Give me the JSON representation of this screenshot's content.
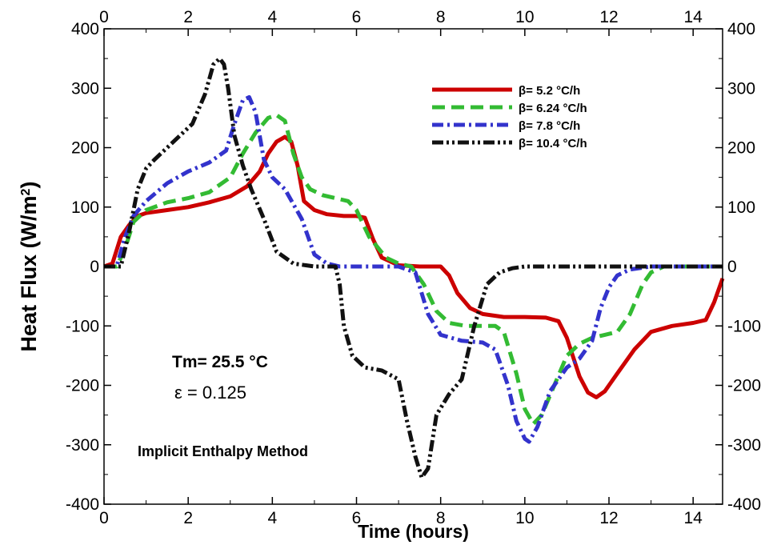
{
  "chart_data": {
    "type": "line",
    "title": "",
    "xlabel": "Time (hours)",
    "ylabel": "Heat Flux (W/m",
    "ylabel_sup": "2",
    "ylabel_close": ")",
    "xlim": [
      0,
      14.7
    ],
    "ylim": [
      -400,
      400
    ],
    "x_ticks": [
      0,
      2,
      4,
      6,
      8,
      10,
      12,
      14
    ],
    "y_ticks": [
      -400,
      -300,
      -200,
      -100,
      0,
      100,
      200,
      300,
      400
    ],
    "grid": false,
    "legend_position": "top-right",
    "series": [
      {
        "name": "β= 5.2 °C/h",
        "color": "#cc0000",
        "dash": "solid",
        "x": [
          0,
          0.2,
          0.4,
          0.6,
          0.8,
          1.0,
          1.5,
          2.0,
          2.5,
          3.0,
          3.4,
          3.7,
          3.9,
          4.1,
          4.3,
          4.45,
          4.6,
          4.75,
          5.0,
          5.3,
          5.7,
          6.0,
          6.2,
          6.4,
          6.6,
          7.0,
          7.5,
          8.0,
          8.2,
          8.4,
          8.7,
          9.0,
          9.5,
          10.0,
          10.5,
          10.8,
          11.0,
          11.3,
          11.5,
          11.7,
          11.9,
          12.2,
          12.6,
          13.0,
          13.5,
          14.0,
          14.3,
          14.5,
          14.7
        ],
        "y": [
          0,
          5,
          50,
          70,
          85,
          90,
          95,
          100,
          108,
          118,
          135,
          160,
          190,
          210,
          218,
          210,
          170,
          110,
          95,
          88,
          85,
          85,
          82,
          45,
          15,
          2,
          0,
          0,
          -15,
          -45,
          -70,
          -80,
          -85,
          -85,
          -86,
          -92,
          -120,
          -185,
          -212,
          -220,
          -210,
          -180,
          -140,
          -110,
          -100,
          -95,
          -90,
          -60,
          -20
        ]
      },
      {
        "name": "β= 6.24 °C/h",
        "color": "#33bb33",
        "dash": "dashed",
        "x": [
          0,
          0.3,
          0.5,
          0.7,
          1.0,
          1.5,
          2.0,
          2.5,
          3.0,
          3.3,
          3.6,
          3.9,
          4.1,
          4.3,
          4.5,
          4.7,
          4.9,
          5.2,
          5.5,
          5.8,
          6.0,
          6.3,
          6.7,
          7.0,
          7.3,
          7.6,
          7.9,
          8.2,
          8.6,
          9.0,
          9.3,
          9.5,
          9.8,
          10.0,
          10.2,
          10.4,
          10.7,
          11.0,
          11.3,
          11.6,
          11.9,
          12.2,
          12.5,
          12.8,
          13.0,
          13.3,
          13.6,
          14.0,
          14.7
        ],
        "y": [
          0,
          0,
          30,
          75,
          95,
          108,
          115,
          125,
          150,
          190,
          225,
          250,
          255,
          245,
          190,
          150,
          130,
          120,
          115,
          110,
          95,
          50,
          15,
          5,
          0,
          -30,
          -75,
          -95,
          -100,
          -100,
          -100,
          -110,
          -180,
          -240,
          -265,
          -250,
          -200,
          -150,
          -130,
          -120,
          -115,
          -110,
          -80,
          -30,
          -10,
          0,
          0,
          0,
          0
        ]
      },
      {
        "name": "β= 7.8 °C/h",
        "color": "#3333cc",
        "dash": "dashdot",
        "x": [
          0,
          0.3,
          0.5,
          0.7,
          1.0,
          1.5,
          2.0,
          2.5,
          2.9,
          3.1,
          3.3,
          3.45,
          3.6,
          3.8,
          4.0,
          4.3,
          4.7,
          5.0,
          5.3,
          5.6,
          6.0,
          6.5,
          7.0,
          7.4,
          7.7,
          8.0,
          8.5,
          9.0,
          9.3,
          9.6,
          9.8,
          10.0,
          10.1,
          10.3,
          10.6,
          11.0,
          11.3,
          11.6,
          11.8,
          12.0,
          12.2,
          12.5,
          13.0,
          13.5,
          14.0,
          14.7
        ],
        "y": [
          0,
          0,
          50,
          85,
          110,
          140,
          160,
          175,
          195,
          240,
          280,
          285,
          260,
          180,
          150,
          130,
          80,
          20,
          5,
          0,
          0,
          0,
          0,
          -10,
          -80,
          -115,
          -125,
          -128,
          -140,
          -200,
          -260,
          -290,
          -295,
          -270,
          -210,
          -170,
          -155,
          -125,
          -70,
          -35,
          -15,
          -5,
          0,
          0,
          0,
          0
        ]
      },
      {
        "name": "β= 10.4 °C/h",
        "color": "#111111",
        "dash": "dashdotdot",
        "x": [
          0,
          0.4,
          0.6,
          0.8,
          1.0,
          1.2,
          1.5,
          1.8,
          2.1,
          2.4,
          2.6,
          2.75,
          2.85,
          2.95,
          3.1,
          3.3,
          3.5,
          3.8,
          4.1,
          4.5,
          5.0,
          5.5,
          5.6,
          5.7,
          5.9,
          6.2,
          6.6,
          7.0,
          7.2,
          7.4,
          7.55,
          7.7,
          7.9,
          8.2,
          8.5,
          8.8,
          9.1,
          9.4,
          9.7,
          10.0,
          10.5,
          11.0,
          12.0,
          13.0,
          14.0,
          14.7
        ],
        "y": [
          0,
          0,
          60,
          130,
          165,
          180,
          200,
          220,
          240,
          290,
          340,
          350,
          340,
          300,
          220,
          170,
          130,
          80,
          25,
          5,
          0,
          0,
          -30,
          -100,
          -150,
          -170,
          -175,
          -190,
          -260,
          -320,
          -355,
          -340,
          -250,
          -215,
          -190,
          -100,
          -30,
          -10,
          -3,
          0,
          0,
          0,
          0,
          0,
          0,
          0
        ]
      }
    ],
    "annotations": [
      {
        "text": "Tm= 25.5 °C"
      },
      {
        "text": "ε = 0.125"
      },
      {
        "text": "Implicit Enthalpy Method"
      }
    ]
  }
}
